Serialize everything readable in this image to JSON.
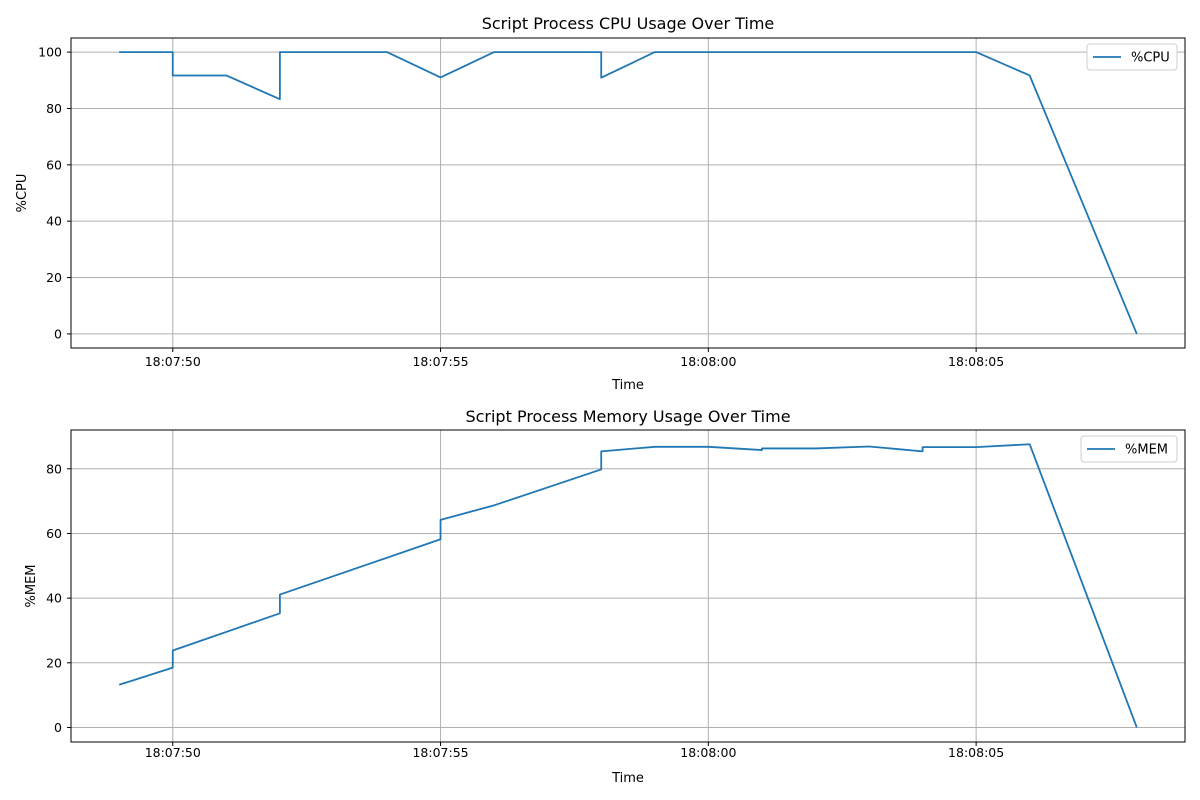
{
  "colors": {
    "series": "#1f77b4",
    "grid": "#b0b0b0",
    "axes": "#000000"
  },
  "chart_data": [
    {
      "type": "line",
      "title": "Script Process CPU Usage Over Time",
      "xlabel": "Time",
      "ylabel": "%CPU",
      "xlim": [
        "18:07:48.1",
        "18:08:08.9"
      ],
      "ylim": [
        -5,
        105
      ],
      "xticks": [
        "18:07:50",
        "18:07:55",
        "18:08:00",
        "18:08:05"
      ],
      "yticks": [
        0,
        20,
        40,
        60,
        80,
        100
      ],
      "grid": true,
      "legend_position": "top-right",
      "series": [
        {
          "name": "%CPU",
          "points": [
            [
              "18:07:49",
              100
            ],
            [
              "18:07:50",
              100
            ],
            [
              "18:07:50",
              91.7
            ],
            [
              "18:07:51",
              91.7
            ],
            [
              "18:07:52",
              83.3
            ],
            [
              "18:07:52",
              100
            ],
            [
              "18:07:54",
              100
            ],
            [
              "18:07:55",
              91
            ],
            [
              "18:07:56",
              100
            ],
            [
              "18:07:58",
              100
            ],
            [
              "18:07:58",
              90.9
            ],
            [
              "18:07:59",
              100
            ],
            [
              "18:08:05",
              100
            ],
            [
              "18:08:06",
              91.7
            ],
            [
              "18:08:08",
              0
            ]
          ]
        }
      ]
    },
    {
      "type": "line",
      "title": "Script Process Memory Usage Over Time",
      "xlabel": "Time",
      "ylabel": "%MEM",
      "xlim": [
        "18:07:48.1",
        "18:08:08.9"
      ],
      "ylim": [
        -4.5,
        92
      ],
      "xticks": [
        "18:07:50",
        "18:07:55",
        "18:08:00",
        "18:08:05"
      ],
      "yticks": [
        0,
        20,
        40,
        60,
        80
      ],
      "grid": true,
      "legend_position": "top-right",
      "series": [
        {
          "name": "%MEM",
          "points": [
            [
              "18:07:49",
              13.2
            ],
            [
              "18:07:50",
              18.5
            ],
            [
              "18:07:50",
              23.8
            ],
            [
              "18:07:52",
              35.3
            ],
            [
              "18:07:52",
              41.1
            ],
            [
              "18:07:55",
              58.2
            ],
            [
              "18:07:55",
              64.2
            ],
            [
              "18:07:56",
              68.7
            ],
            [
              "18:07:58",
              79.8
            ],
            [
              "18:07:58",
              85.4
            ],
            [
              "18:07:59",
              86.8
            ],
            [
              "18:08:00",
              86.8
            ],
            [
              "18:08:01",
              85.8
            ],
            [
              "18:08:01",
              86.3
            ],
            [
              "18:08:02",
              86.3
            ],
            [
              "18:08:03",
              86.9
            ],
            [
              "18:08:04",
              85.4
            ],
            [
              "18:08:04",
              86.7
            ],
            [
              "18:08:05",
              86.7
            ],
            [
              "18:08:06",
              87.6
            ],
            [
              "18:08:08",
              0
            ]
          ]
        }
      ]
    }
  ]
}
